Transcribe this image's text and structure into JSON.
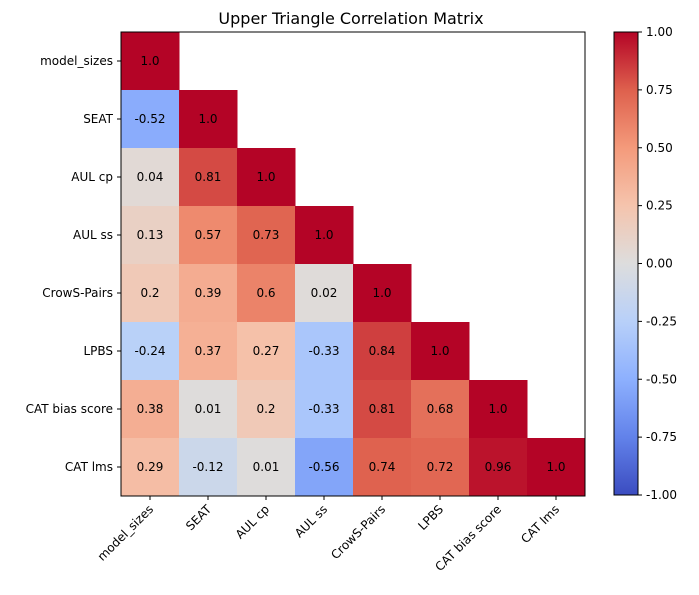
{
  "chart_data": {
    "type": "heatmap",
    "title": "Upper Triangle Correlation Matrix",
    "xlabel": "",
    "ylabel": "",
    "variables": [
      "model_sizes",
      "SEAT",
      "AUL cp",
      "AUL ss",
      "CrowS-Pairs",
      "LPBS",
      "CAT bias score",
      "CAT lms"
    ],
    "matrix": [
      [
        1.0,
        null,
        null,
        null,
        null,
        null,
        null,
        null
      ],
      [
        -0.52,
        1.0,
        null,
        null,
        null,
        null,
        null,
        null
      ],
      [
        0.04,
        0.81,
        1.0,
        null,
        null,
        null,
        null,
        null
      ],
      [
        0.13,
        0.57,
        0.73,
        1.0,
        null,
        null,
        null,
        null
      ],
      [
        0.2,
        0.39,
        0.6,
        0.02,
        1.0,
        null,
        null,
        null
      ],
      [
        -0.24,
        0.37,
        0.27,
        -0.33,
        0.84,
        1.0,
        null,
        null
      ],
      [
        0.38,
        0.01,
        0.2,
        -0.33,
        0.81,
        0.68,
        1.0,
        null
      ],
      [
        0.29,
        -0.12,
        0.01,
        -0.56,
        0.74,
        0.72,
        0.96,
        1.0
      ]
    ],
    "cell_labels": [
      [
        "1.0",
        "",
        "",
        "",
        "",
        "",
        "",
        ""
      ],
      [
        "-0.52",
        "1.0",
        "",
        "",
        "",
        "",
        "",
        ""
      ],
      [
        "0.04",
        "0.81",
        "1.0",
        "",
        "",
        "",
        "",
        ""
      ],
      [
        "0.13",
        "0.57",
        "0.73",
        "1.0",
        "",
        "",
        "",
        ""
      ],
      [
        "0.2",
        "0.39",
        "0.6",
        "0.02",
        "1.0",
        "",
        "",
        ""
      ],
      [
        "-0.24",
        "0.37",
        "0.27",
        "-0.33",
        "0.84",
        "1.0",
        "",
        ""
      ],
      [
        "0.38",
        "0.01",
        "0.2",
        "-0.33",
        "0.81",
        "0.68",
        "1.0",
        ""
      ],
      [
        "0.29",
        "-0.12",
        "0.01",
        "-0.56",
        "0.74",
        "0.72",
        "0.96",
        "1.0"
      ]
    ],
    "colormap": "coolwarm",
    "vmin": -1.0,
    "vmax": 1.0,
    "colorbar_ticks": [
      "-1.00",
      "-0.75",
      "-0.50",
      "-0.25",
      "0.00",
      "0.25",
      "0.50",
      "0.75",
      "1.00"
    ],
    "colorbar_tick_values": [
      -1.0,
      -0.75,
      -0.5,
      -0.25,
      0.0,
      0.25,
      0.5,
      0.75,
      1.0
    ],
    "grid": false,
    "legend": "colorbar-right"
  }
}
